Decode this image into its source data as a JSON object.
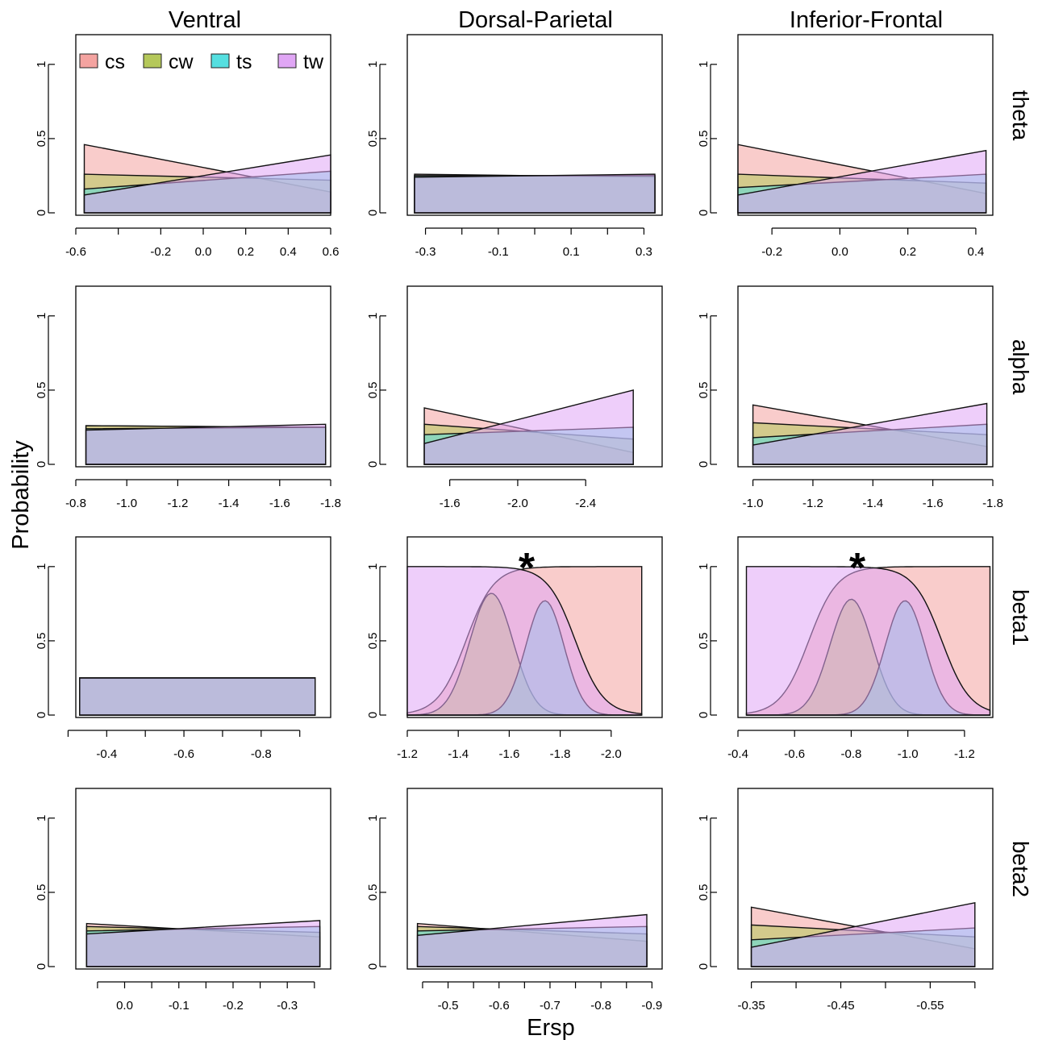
{
  "figure": {
    "column_titles": [
      "Ventral",
      "Dorsal-Parietal",
      "Inferior-Frontal"
    ],
    "row_labels": [
      "theta",
      "alpha",
      "beta1",
      "beta2"
    ],
    "ylabel": "Probability",
    "xlabel": "Ersp",
    "legend": [
      {
        "label": "cs",
        "color": "#f4a3a0"
      },
      {
        "label": "cw",
        "color": "#b5c85a"
      },
      {
        "label": "ts",
        "color": "#55dfe0"
      },
      {
        "label": "tw",
        "color": "#e0a6f5"
      }
    ],
    "overlap_color": "#8f98d8",
    "significance_marker": "*"
  },
  "chart_data": [
    {
      "type": "area",
      "region": "Ventral",
      "band": "theta",
      "xlim": [
        -0.6,
        0.6
      ],
      "ylim": [
        0,
        1.2
      ],
      "xticks": [
        -0.6,
        -0.4,
        -0.2,
        0.0,
        0.2,
        0.4,
        0.6
      ],
      "xtick_labels": [
        "-0.6",
        "",
        "-0.2",
        "0.0",
        "0.2",
        "0.4",
        "0.6"
      ],
      "yticks": [
        0,
        0.5,
        1
      ],
      "ytick_labels": [
        "0",
        "0.5",
        "1"
      ],
      "significant": false,
      "legend": true,
      "series": [
        {
          "name": "cs",
          "x": [
            -0.56,
            0.6
          ],
          "y": [
            0.46,
            0.14
          ]
        },
        {
          "name": "cw",
          "x": [
            -0.56,
            0.6
          ],
          "y": [
            0.26,
            0.22
          ]
        },
        {
          "name": "ts",
          "x": [
            -0.56,
            0.6
          ],
          "y": [
            0.16,
            0.28
          ]
        },
        {
          "name": "tw",
          "x": [
            -0.56,
            0.6
          ],
          "y": [
            0.12,
            0.39
          ]
        }
      ]
    },
    {
      "type": "area",
      "region": "Dorsal-Parietal",
      "band": "theta",
      "xlim": [
        -0.35,
        0.35
      ],
      "ylim": [
        0,
        1.2
      ],
      "xticks": [
        -0.3,
        -0.2,
        -0.1,
        0.0,
        0.1,
        0.2,
        0.3
      ],
      "xtick_labels": [
        "-0.3",
        "",
        "-0.1",
        "",
        "0.1",
        "",
        "0.3"
      ],
      "yticks": [
        0,
        0.5,
        1
      ],
      "ytick_labels": [
        "0",
        "0.5",
        "1"
      ],
      "significant": false,
      "legend": false,
      "series": [
        {
          "name": "cs",
          "x": [
            -0.33,
            0.33
          ],
          "y": [
            0.26,
            0.24
          ]
        },
        {
          "name": "cw",
          "x": [
            -0.33,
            0.33
          ],
          "y": [
            0.25,
            0.25
          ]
        },
        {
          "name": "ts",
          "x": [
            -0.33,
            0.33
          ],
          "y": [
            0.25,
            0.25
          ]
        },
        {
          "name": "tw",
          "x": [
            -0.33,
            0.33
          ],
          "y": [
            0.24,
            0.26
          ]
        }
      ]
    },
    {
      "type": "area",
      "region": "Inferior-Frontal",
      "band": "theta",
      "xlim": [
        -0.3,
        0.45
      ],
      "ylim": [
        0,
        1.2
      ],
      "xticks": [
        -0.2,
        0.0,
        0.2,
        0.4
      ],
      "xtick_labels": [
        "-0.2",
        "0.0",
        "0.2",
        "0.4"
      ],
      "yticks": [
        0,
        0.5,
        1
      ],
      "ytick_labels": [
        "0",
        "0.5",
        "1"
      ],
      "significant": false,
      "legend": false,
      "series": [
        {
          "name": "cs",
          "x": [
            -0.3,
            0.43
          ],
          "y": [
            0.46,
            0.13
          ]
        },
        {
          "name": "cw",
          "x": [
            -0.3,
            0.43
          ],
          "y": [
            0.26,
            0.2
          ]
        },
        {
          "name": "ts",
          "x": [
            -0.3,
            0.43
          ],
          "y": [
            0.17,
            0.26
          ]
        },
        {
          "name": "tw",
          "x": [
            -0.3,
            0.43
          ],
          "y": [
            0.12,
            0.42
          ]
        }
      ]
    },
    {
      "type": "area",
      "region": "Ventral",
      "band": "alpha",
      "xlim": [
        -0.8,
        -1.8
      ],
      "ylim": [
        0,
        1.2
      ],
      "xticks": [
        -0.8,
        -1.0,
        -1.2,
        -1.4,
        -1.6,
        -1.8
      ],
      "xtick_labels": [
        "-0.8",
        "-1.0",
        "-1.2",
        "-1.4",
        "-1.6",
        "-1.8"
      ],
      "yticks": [
        0,
        0.5,
        1
      ],
      "ytick_labels": [
        "0",
        "0.5",
        "1"
      ],
      "significant": false,
      "legend": false,
      "series": [
        {
          "name": "cs",
          "x": [
            -0.84,
            -1.78
          ],
          "y": [
            0.26,
            0.25
          ]
        },
        {
          "name": "cw",
          "x": [
            -0.84,
            -1.78
          ],
          "y": [
            0.26,
            0.25
          ]
        },
        {
          "name": "ts",
          "x": [
            -0.84,
            -1.78
          ],
          "y": [
            0.24,
            0.25
          ]
        },
        {
          "name": "tw",
          "x": [
            -0.84,
            -1.78
          ],
          "y": [
            0.23,
            0.27
          ]
        }
      ]
    },
    {
      "type": "area",
      "region": "Dorsal-Parietal",
      "band": "alpha",
      "xlim": [
        -1.35,
        -2.85
      ],
      "ylim": [
        0,
        1.2
      ],
      "xticks": [
        -1.6,
        -2.0,
        -2.4
      ],
      "xtick_labels": [
        "-1.6",
        "-2.0",
        "-2.4"
      ],
      "yticks": [
        0,
        0.5,
        1
      ],
      "ytick_labels": [
        "0",
        "0.5",
        "1"
      ],
      "significant": false,
      "legend": false,
      "series": [
        {
          "name": "cs",
          "x": [
            -1.45,
            -2.68
          ],
          "y": [
            0.38,
            0.08
          ]
        },
        {
          "name": "cw",
          "x": [
            -1.45,
            -2.68
          ],
          "y": [
            0.27,
            0.17
          ]
        },
        {
          "name": "ts",
          "x": [
            -1.45,
            -2.68
          ],
          "y": [
            0.2,
            0.25
          ]
        },
        {
          "name": "tw",
          "x": [
            -1.45,
            -2.68
          ],
          "y": [
            0.14,
            0.5
          ]
        }
      ]
    },
    {
      "type": "area",
      "region": "Inferior-Frontal",
      "band": "alpha",
      "xlim": [
        -0.95,
        -1.8
      ],
      "ylim": [
        0,
        1.2
      ],
      "xticks": [
        -1.0,
        -1.2,
        -1.4,
        -1.6,
        -1.8
      ],
      "xtick_labels": [
        "-1.0",
        "-1.2",
        "-1.4",
        "-1.6",
        "-1.8"
      ],
      "yticks": [
        0,
        0.5,
        1
      ],
      "ytick_labels": [
        "0",
        "0.5",
        "1"
      ],
      "significant": false,
      "legend": false,
      "series": [
        {
          "name": "cs",
          "x": [
            -1.0,
            -1.78
          ],
          "y": [
            0.4,
            0.12
          ]
        },
        {
          "name": "cw",
          "x": [
            -1.0,
            -1.78
          ],
          "y": [
            0.28,
            0.2
          ]
        },
        {
          "name": "ts",
          "x": [
            -1.0,
            -1.78
          ],
          "y": [
            0.18,
            0.27
          ]
        },
        {
          "name": "tw",
          "x": [
            -1.0,
            -1.78
          ],
          "y": [
            0.13,
            0.41
          ]
        }
      ]
    },
    {
      "type": "area",
      "region": "Ventral",
      "band": "beta1",
      "xlim": [
        -0.32,
        -0.98
      ],
      "ylim": [
        0,
        1.2
      ],
      "xticks": [
        -0.3,
        -0.4,
        -0.5,
        -0.6,
        -0.7,
        -0.8,
        -0.9
      ],
      "xtick_labels": [
        "",
        "-0.4",
        "",
        "-0.6",
        "",
        "-0.8",
        ""
      ],
      "yticks": [
        0,
        0.5,
        1
      ],
      "ytick_labels": [
        "0",
        "0.5",
        "1"
      ],
      "significant": false,
      "legend": false,
      "series": [
        {
          "name": "cs",
          "x": [
            -0.33,
            -0.94
          ],
          "y": [
            0.25,
            0.25
          ]
        },
        {
          "name": "cw",
          "x": [
            -0.33,
            -0.94
          ],
          "y": [
            0.25,
            0.25
          ]
        },
        {
          "name": "ts",
          "x": [
            -0.33,
            -0.94
          ],
          "y": [
            0.25,
            0.25
          ]
        },
        {
          "name": "tw",
          "x": [
            -0.33,
            -0.94
          ],
          "y": [
            0.25,
            0.25
          ]
        }
      ]
    },
    {
      "type": "area",
      "region": "Dorsal-Parietal",
      "band": "beta1",
      "xlim": [
        -1.2,
        -2.2
      ],
      "ylim": [
        0,
        1.2
      ],
      "xticks": [
        -1.2,
        -1.4,
        -1.6,
        -1.8,
        -2.0
      ],
      "xtick_labels": [
        "-1.2",
        "-1.4",
        "-1.6",
        "-1.8",
        "-2.0"
      ],
      "yticks": [
        0,
        0.5,
        1
      ],
      "ytick_labels": [
        "0",
        "0.5",
        "1"
      ],
      "significant": true,
      "legend": false,
      "xrange": [
        -1.2,
        -2.12
      ],
      "series": [
        {
          "name": "cs",
          "shape": "sigmoid_down",
          "center": -1.43,
          "scale": 0.055,
          "peak": 1.0
        },
        {
          "name": "cw",
          "shape": "bell",
          "center": -1.53,
          "scale": 0.085,
          "peak": 0.82
        },
        {
          "name": "ts",
          "shape": "bell",
          "center": -1.74,
          "scale": 0.075,
          "peak": 0.77
        },
        {
          "name": "tw",
          "shape": "sigmoid_up",
          "center": -1.86,
          "scale": 0.055,
          "peak": 1.0
        }
      ]
    },
    {
      "type": "area",
      "region": "Inferior-Frontal",
      "band": "beta1",
      "xlim": [
        -0.4,
        -1.3
      ],
      "ylim": [
        0,
        1.2
      ],
      "xticks": [
        -0.4,
        -0.6,
        -0.8,
        -1.0,
        -1.2
      ],
      "xtick_labels": [
        "-0.4",
        "-0.6",
        "-0.8",
        "-1.0",
        "-1.2"
      ],
      "yticks": [
        0,
        0.5,
        1
      ],
      "ytick_labels": [
        "0",
        "0.5",
        "1"
      ],
      "significant": true,
      "legend": false,
      "xrange": [
        -0.43,
        -1.29
      ],
      "series": [
        {
          "name": "cs",
          "shape": "sigmoid_down",
          "center": -0.65,
          "scale": 0.05,
          "peak": 1.0
        },
        {
          "name": "cw",
          "shape": "bell",
          "center": -0.8,
          "scale": 0.075,
          "peak": 0.78
        },
        {
          "name": "ts",
          "shape": "bell",
          "center": -0.99,
          "scale": 0.07,
          "peak": 0.77
        },
        {
          "name": "tw",
          "shape": "sigmoid_up",
          "center": -1.12,
          "scale": 0.05,
          "peak": 1.0
        }
      ]
    },
    {
      "type": "area",
      "region": "Ventral",
      "band": "beta2",
      "xlim": [
        0.09,
        -0.38
      ],
      "ylim": [
        0,
        1.2
      ],
      "xticks": [
        0.05,
        0.0,
        -0.05,
        -0.1,
        -0.15,
        -0.2,
        -0.25,
        -0.3,
        -0.35
      ],
      "xtick_labels": [
        "",
        "0.0",
        "",
        "-0.1",
        "",
        "-0.2",
        "",
        "-0.3",
        ""
      ],
      "yticks": [
        0,
        0.5,
        1
      ],
      "ytick_labels": [
        "0",
        "0.5",
        "1"
      ],
      "significant": false,
      "legend": false,
      "series": [
        {
          "name": "cs",
          "x": [
            0.07,
            -0.36
          ],
          "y": [
            0.29,
            0.2
          ]
        },
        {
          "name": "cw",
          "x": [
            0.07,
            -0.36
          ],
          "y": [
            0.27,
            0.23
          ]
        },
        {
          "name": "ts",
          "x": [
            0.07,
            -0.36
          ],
          "y": [
            0.24,
            0.27
          ]
        },
        {
          "name": "tw",
          "x": [
            0.07,
            -0.36
          ],
          "y": [
            0.22,
            0.31
          ]
        }
      ]
    },
    {
      "type": "area",
      "region": "Dorsal-Parietal",
      "band": "beta2",
      "xlim": [
        -0.42,
        -0.92
      ],
      "ylim": [
        0,
        1.2
      ],
      "xticks": [
        -0.45,
        -0.5,
        -0.55,
        -0.6,
        -0.65,
        -0.7,
        -0.75,
        -0.8,
        -0.85,
        -0.9
      ],
      "xtick_labels": [
        "",
        "-0.5",
        "",
        "-0.6",
        "",
        "-0.7",
        "",
        "-0.8",
        "",
        "-0.9"
      ],
      "yticks": [
        0,
        0.5,
        1
      ],
      "ytick_labels": [
        "0",
        "0.5",
        "1"
      ],
      "significant": false,
      "legend": false,
      "series": [
        {
          "name": "cs",
          "x": [
            -0.44,
            -0.89
          ],
          "y": [
            0.29,
            0.17
          ]
        },
        {
          "name": "cw",
          "x": [
            -0.44,
            -0.89
          ],
          "y": [
            0.27,
            0.22
          ]
        },
        {
          "name": "ts",
          "x": [
            -0.44,
            -0.89
          ],
          "y": [
            0.24,
            0.27
          ]
        },
        {
          "name": "tw",
          "x": [
            -0.44,
            -0.89
          ],
          "y": [
            0.21,
            0.35
          ]
        }
      ]
    },
    {
      "type": "area",
      "region": "Inferior-Frontal",
      "band": "beta2",
      "xlim": [
        -0.335,
        -0.62
      ],
      "ylim": [
        0,
        1.2
      ],
      "xticks": [
        -0.35,
        -0.4,
        -0.45,
        -0.5,
        -0.55,
        -0.6
      ],
      "xtick_labels": [
        "-0.35",
        "",
        "-0.45",
        "",
        "-0.55",
        ""
      ],
      "yticks": [
        0,
        0.5,
        1
      ],
      "ytick_labels": [
        "0",
        "0.5",
        "1"
      ],
      "significant": false,
      "legend": false,
      "series": [
        {
          "name": "cs",
          "x": [
            -0.35,
            -0.6
          ],
          "y": [
            0.4,
            0.12
          ]
        },
        {
          "name": "cw",
          "x": [
            -0.35,
            -0.6
          ],
          "y": [
            0.28,
            0.2
          ]
        },
        {
          "name": "ts",
          "x": [
            -0.35,
            -0.6
          ],
          "y": [
            0.18,
            0.26
          ]
        },
        {
          "name": "tw",
          "x": [
            -0.35,
            -0.6
          ],
          "y": [
            0.13,
            0.43
          ]
        }
      ]
    }
  ]
}
